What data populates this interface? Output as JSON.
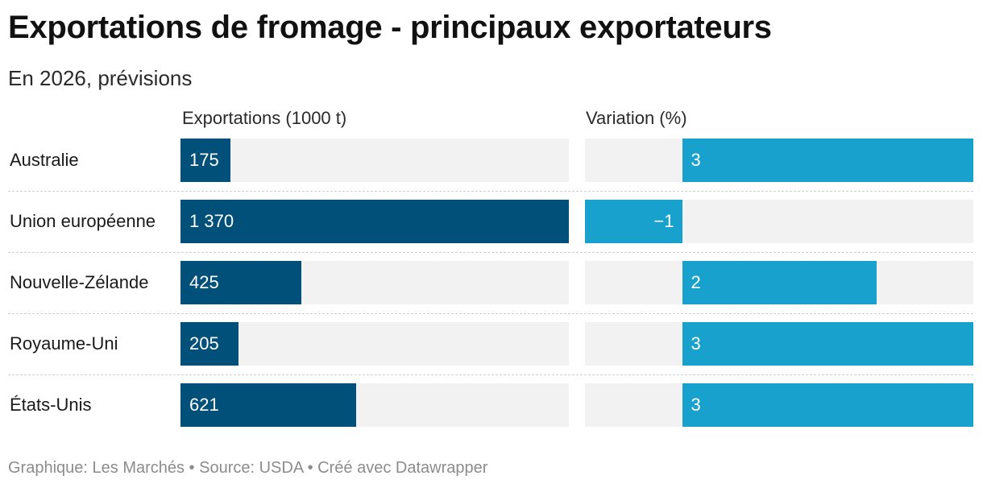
{
  "title": "Exportations de fromage - principaux exportateurs",
  "subtitle": "En 2026, prévisions",
  "footer": "Graphique: Les Marchés • Source: USDA • Créé avec Datawrapper",
  "chart_data": {
    "type": "bar",
    "orientation": "horizontal",
    "title": "Exportations de fromage - principaux exportateurs",
    "subtitle": "En 2026, prévisions",
    "categories": [
      "Australie",
      "Union européenne",
      "Nouvelle-Zélande",
      "Royaume-Uni",
      "États-Unis"
    ],
    "series": [
      {
        "name": "Exportations (1000 t)",
        "values": [
          175,
          1370,
          425,
          205,
          621
        ],
        "labels": [
          "175",
          "1 370",
          "425",
          "205",
          "621"
        ],
        "xlim": [
          0,
          1370
        ],
        "color": "#00507a"
      },
      {
        "name": "Variation (%)",
        "values": [
          3,
          -1,
          2,
          3,
          3
        ],
        "labels": [
          "3",
          "−1",
          "2",
          "3",
          "3"
        ],
        "xlim": [
          -1,
          3
        ],
        "color": "#18a1cd"
      }
    ],
    "track_color": "#f2f2f2",
    "grid": false,
    "legend": "none"
  }
}
